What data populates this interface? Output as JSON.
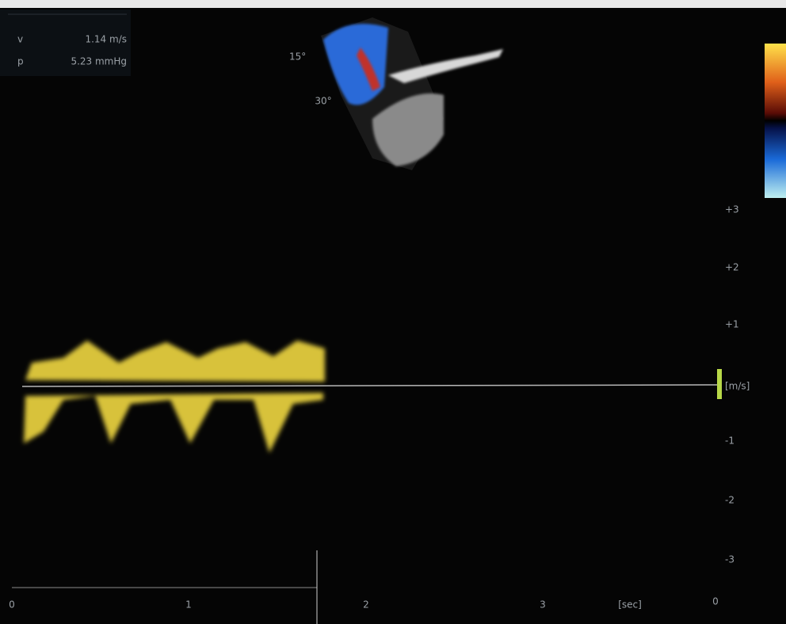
{
  "measurements": [
    {
      "label": "v",
      "value": "1.14 m/s"
    },
    {
      "label": "p",
      "value": "5.23 mmHg"
    }
  ],
  "sector_angles": [
    "15°",
    "30°"
  ],
  "velocity_scale": {
    "ticks": [
      "+3",
      "+2",
      "+1",
      "-1",
      "-2",
      "-3"
    ],
    "unit": "[m/s]"
  },
  "time_axis": {
    "ticks": [
      "0",
      "1",
      "2",
      "3"
    ],
    "unit": "[sec]",
    "end_label": "0"
  }
}
